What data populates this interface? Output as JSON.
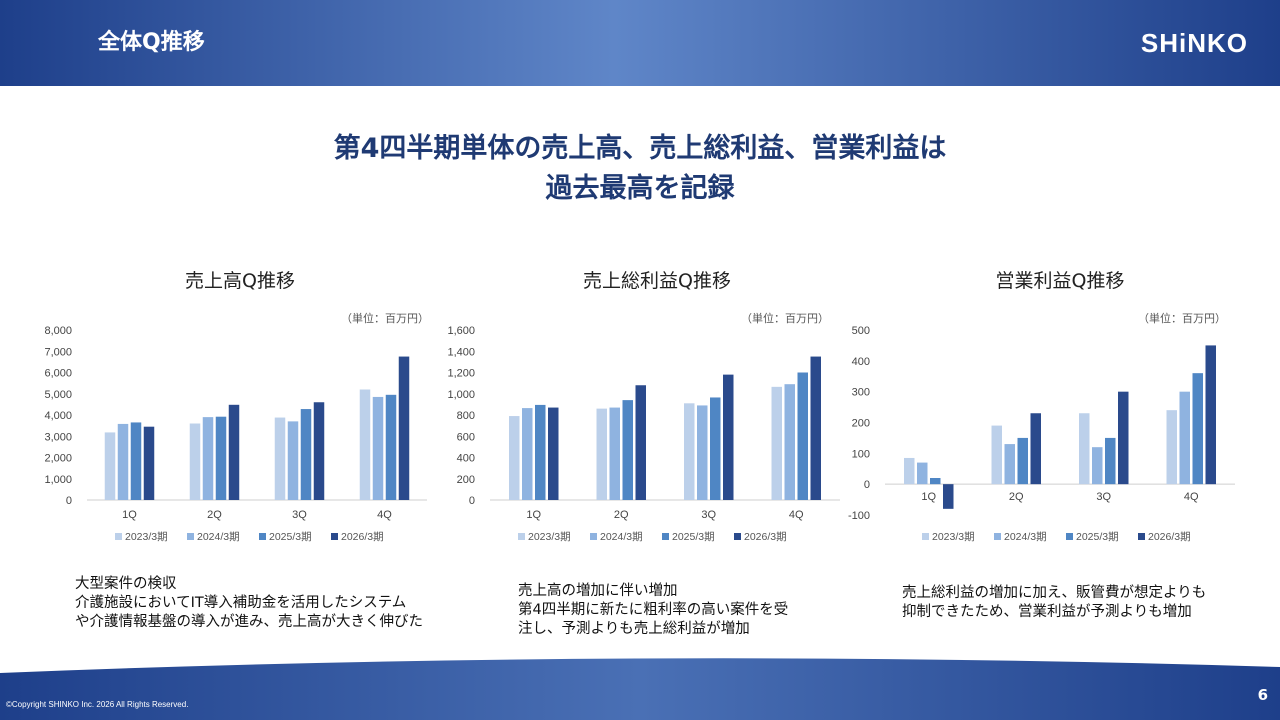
{
  "header": {
    "title": "全体Q推移",
    "logo_text": "SHiNKO"
  },
  "headline": {
    "line1": "第4四半期単体の売上高、売上総利益、営業利益は",
    "line2": "過去最高を記録"
  },
  "colors": {
    "header_dark": "#1e3f8a",
    "header_light": "#5f86c8",
    "headline": "#1f3a73",
    "series": [
      "#bcd0ea",
      "#8fb3e0",
      "#4f86c4",
      "#2a4a8c"
    ]
  },
  "chart_data": [
    {
      "type": "bar",
      "title": "売上高Q推移",
      "unit": "（単位：百万円）",
      "categories": [
        "1Q",
        "2Q",
        "3Q",
        "4Q"
      ],
      "ylim": [
        0,
        8000
      ],
      "yticks": [
        0,
        1000,
        2000,
        3000,
        4000,
        5000,
        6000,
        7000,
        8000
      ],
      "ytick_labels": [
        "0",
        "1,000",
        "2,000",
        "3,000",
        "4,000",
        "5,000",
        "6,000",
        "7,000",
        "8,000"
      ],
      "grid": false,
      "legend_position": "bottom",
      "series": [
        {
          "name": "2023/3期",
          "values": [
            3180,
            3600,
            3880,
            5200
          ]
        },
        {
          "name": "2024/3期",
          "values": [
            3580,
            3900,
            3700,
            4850
          ]
        },
        {
          "name": "2025/3期",
          "values": [
            3650,
            3920,
            4280,
            4950
          ]
        },
        {
          "name": "2026/3期",
          "values": [
            3450,
            4480,
            4600,
            6750
          ]
        }
      ]
    },
    {
      "type": "bar",
      "title": "売上総利益Q推移",
      "unit": "（単位：百万円）",
      "categories": [
        "1Q",
        "2Q",
        "3Q",
        "4Q"
      ],
      "ylim": [
        0,
        1600
      ],
      "yticks": [
        0,
        200,
        400,
        600,
        800,
        1000,
        1200,
        1400,
        1600
      ],
      "ytick_labels": [
        "0",
        "200",
        "400",
        "600",
        "800",
        "1,000",
        "1,200",
        "1,400",
        "1,600"
      ],
      "grid": false,
      "legend_position": "bottom",
      "series": [
        {
          "name": "2023/3期",
          "values": [
            790,
            860,
            910,
            1065
          ]
        },
        {
          "name": "2024/3期",
          "values": [
            865,
            870,
            890,
            1090
          ]
        },
        {
          "name": "2025/3期",
          "values": [
            895,
            940,
            965,
            1200
          ]
        },
        {
          "name": "2026/3期",
          "values": [
            870,
            1080,
            1180,
            1350
          ]
        }
      ]
    },
    {
      "type": "bar",
      "title": "営業利益Q推移",
      "unit": "（単位：百万円）",
      "categories": [
        "1Q",
        "2Q",
        "3Q",
        "4Q"
      ],
      "ylim": [
        -100,
        500
      ],
      "yticks": [
        -100,
        0,
        100,
        200,
        300,
        400,
        500
      ],
      "ytick_labels": [
        "-100",
        "0",
        "100",
        "200",
        "300",
        "400",
        "500"
      ],
      "grid": false,
      "legend_position": "bottom",
      "series": [
        {
          "name": "2023/3期",
          "values": [
            85,
            190,
            230,
            240
          ]
        },
        {
          "name": "2024/3期",
          "values": [
            70,
            130,
            120,
            300
          ]
        },
        {
          "name": "2025/3期",
          "values": [
            20,
            150,
            150,
            360
          ]
        },
        {
          "name": "2026/3期",
          "values": [
            -80,
            230,
            300,
            450
          ]
        }
      ]
    }
  ],
  "notes": {
    "sales": [
      "大型案件の検収",
      "介護施設においてIT導入補助金を活用したシステム",
      "や介護情報基盤の導入が進み、売上高が大きく伸びた"
    ],
    "gross_profit": [
      "売上高の増加に伴い増加",
      "第4四半期に新たに粗利率の高い案件を受",
      "注し、予測よりも売上総利益が増加"
    ],
    "operating_profit": [
      "売上総利益の増加に加え、販管費が想定よりも",
      "抑制できたため、営業利益が予測よりも増加"
    ]
  },
  "footer": {
    "copyright": "©Copyright SHINKO Inc. 2026 All Rights Reserved.",
    "page_number": "6"
  }
}
